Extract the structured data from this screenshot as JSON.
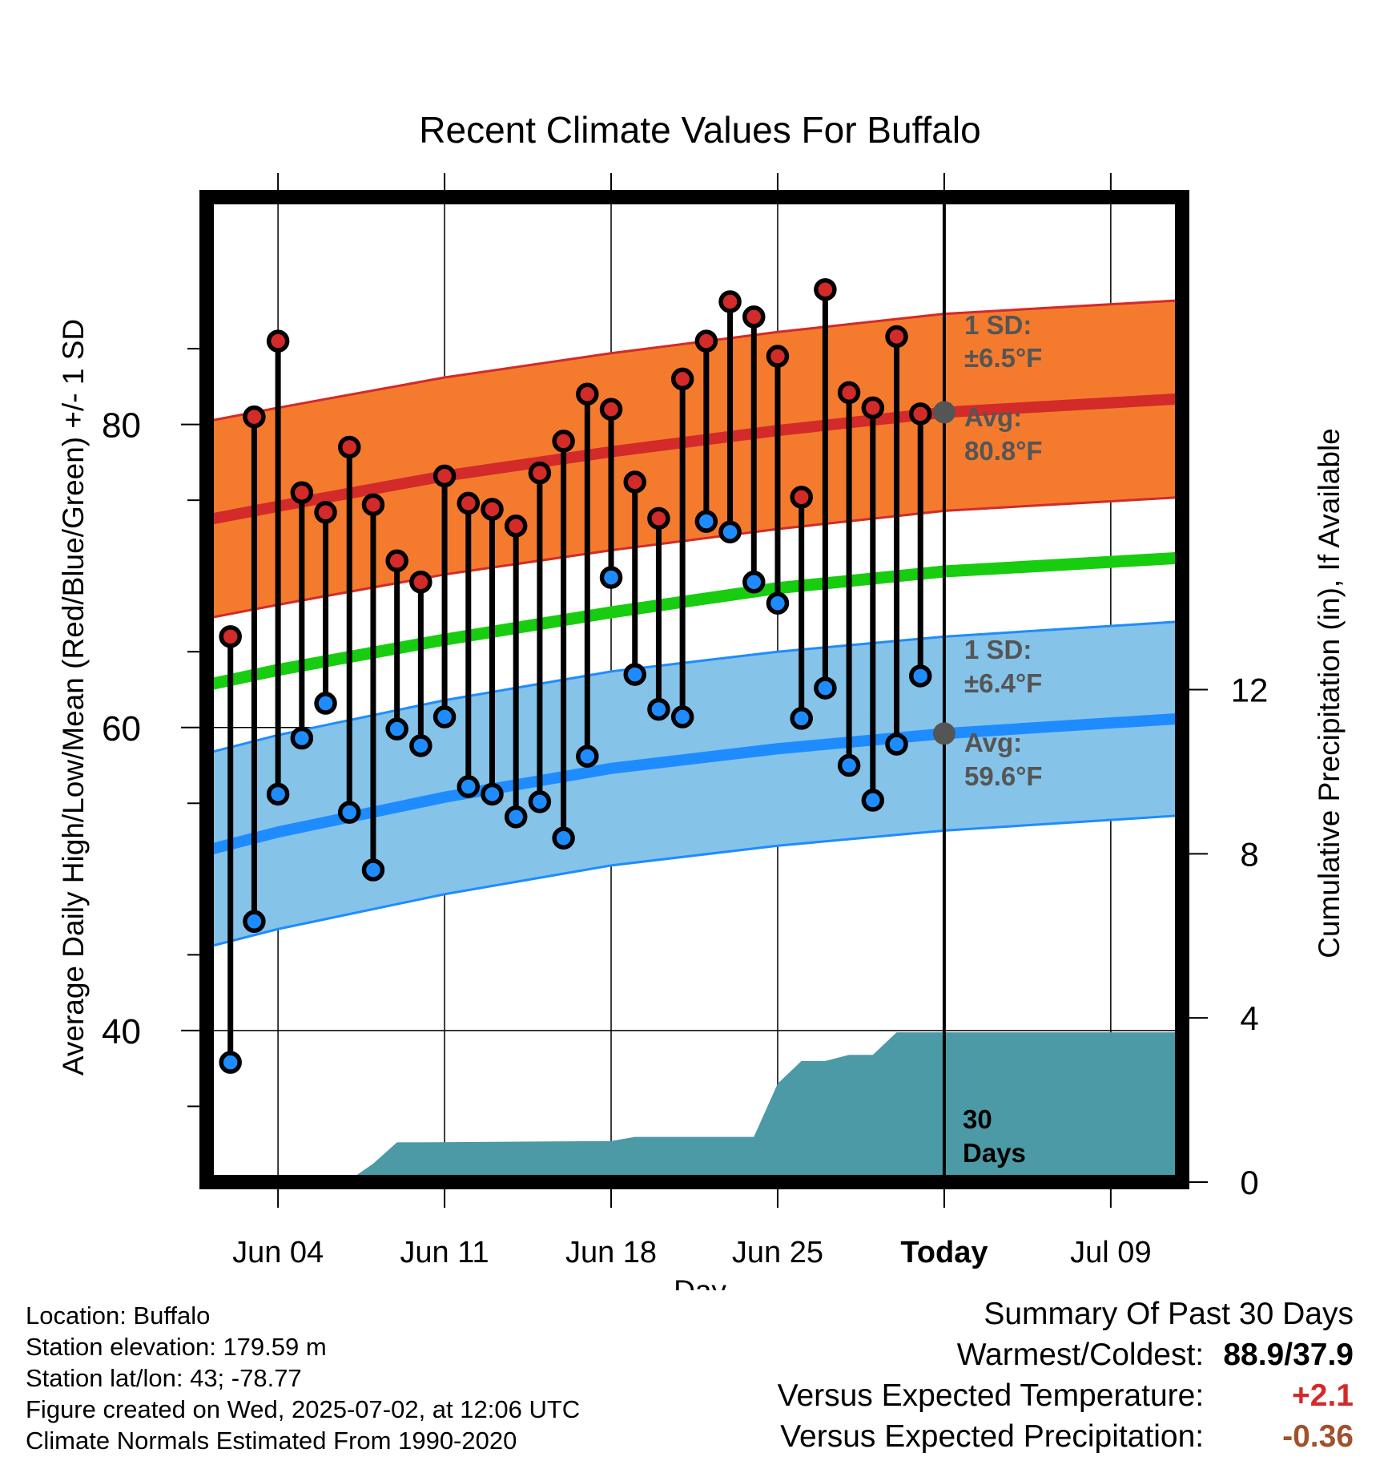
{
  "chart_data": {
    "type": "line",
    "title": "Recent Climate Values For Buffalo",
    "xlabel": "Day",
    "ylabel": "Average Daily High/Low/Mean (Red/Blue/Green) +/- 1 SD",
    "y2label": "Cumulative Precipitation (in), If Available",
    "x_range": [
      "2025-06-01",
      "2025-07-12"
    ],
    "ylim": [
      30,
      95
    ],
    "y2lim": [
      0,
      24
    ],
    "x_ticks": [
      {
        "date": "2025-06-04",
        "label": "Jun 04"
      },
      {
        "date": "2025-06-11",
        "label": "Jun 11"
      },
      {
        "date": "2025-06-18",
        "label": "Jun 18"
      },
      {
        "date": "2025-06-25",
        "label": "Jun 25"
      },
      {
        "date": "2025-07-02",
        "label": "Today"
      },
      {
        "date": "2025-07-09",
        "label": "Jul 09"
      }
    ],
    "y_ticks": [
      40,
      60,
      80
    ],
    "y2_ticks": [
      0,
      4,
      8,
      12
    ],
    "grid": true,
    "today": "2025-07-02",
    "days": [
      "2025-06-02",
      "2025-06-03",
      "2025-06-04",
      "2025-06-05",
      "2025-06-06",
      "2025-06-07",
      "2025-06-08",
      "2025-06-09",
      "2025-06-10",
      "2025-06-11",
      "2025-06-12",
      "2025-06-13",
      "2025-06-14",
      "2025-06-15",
      "2025-06-16",
      "2025-06-17",
      "2025-06-18",
      "2025-06-19",
      "2025-06-20",
      "2025-06-21",
      "2025-06-22",
      "2025-06-23",
      "2025-06-24",
      "2025-06-25",
      "2025-06-26",
      "2025-06-27",
      "2025-06-28",
      "2025-06-29",
      "2025-06-30",
      "2025-07-01"
    ],
    "highs": [
      66.0,
      80.5,
      85.5,
      75.5,
      74.2,
      78.5,
      74.7,
      71.0,
      69.6,
      76.6,
      74.8,
      74.4,
      73.3,
      76.8,
      78.9,
      82.0,
      81.0,
      76.2,
      73.8,
      83.0,
      85.5,
      88.1,
      87.1,
      84.5,
      75.2,
      88.9,
      82.1,
      81.1,
      85.8,
      80.7
    ],
    "lows": [
      37.9,
      47.2,
      55.6,
      59.3,
      61.6,
      54.4,
      50.6,
      59.9,
      58.8,
      60.7,
      56.1,
      55.6,
      54.1,
      55.1,
      52.7,
      58.1,
      69.9,
      63.5,
      61.2,
      60.7,
      73.6,
      72.9,
      69.6,
      68.2,
      60.6,
      62.6,
      57.5,
      55.2,
      58.9,
      63.4
    ],
    "normals": {
      "dates": [
        "2025-06-01",
        "2025-06-04",
        "2025-06-11",
        "2025-06-18",
        "2025-06-25",
        "2025-07-02",
        "2025-07-12"
      ],
      "avg_high": [
        73.7,
        74.6,
        76.6,
        78.2,
        79.6,
        80.8,
        81.7
      ],
      "avg_low": [
        51.9,
        53.1,
        55.4,
        57.3,
        58.6,
        59.6,
        60.6
      ],
      "avg_mean": [
        62.8,
        63.8,
        65.8,
        67.6,
        69.2,
        70.3,
        71.2
      ],
      "high_sd": 6.5,
      "low_sd": 6.4
    },
    "precip": {
      "dates": [
        "2025-06-01",
        "2025-06-07",
        "2025-06-08",
        "2025-06-09",
        "2025-06-10",
        "2025-06-18",
        "2025-06-19",
        "2025-06-24",
        "2025-06-25",
        "2025-06-26",
        "2025-06-27",
        "2025-06-28",
        "2025-06-29",
        "2025-06-30",
        "2025-07-12"
      ],
      "cumulative": [
        0.0,
        0.05,
        0.45,
        0.97,
        0.97,
        1.0,
        1.1,
        1.1,
        2.4,
        2.95,
        2.95,
        3.1,
        3.1,
        3.65,
        3.65
      ]
    },
    "annotations": {
      "high_sd_label": "1 SD:",
      "high_sd_value": "±6.5°F",
      "high_avg_label": "Avg:",
      "high_avg_value": "80.8°F",
      "low_sd_label": "1 SD:",
      "low_sd_value": "±6.4°F",
      "low_avg_label": "Avg:",
      "low_avg_value": "59.6°F",
      "days_label_1": "30",
      "days_label_2": "Days"
    },
    "colors": {
      "high_band": "#f47b2e",
      "high_line": "#d32a2a",
      "low_band": "#86c3e8",
      "low_line": "#1e8cff",
      "mean_line": "#18cc10",
      "precip": "#4b9aa6",
      "high_marker": "#d32a2a",
      "low_marker": "#1e8cff",
      "annotation_text": "#555555"
    }
  },
  "info": {
    "location": "Location: Buffalo",
    "elevation": "Station elevation: 179.59 m",
    "latlon": "Station lat/lon: 43; -78.77",
    "created": "Figure created on Wed, 2025-07-02, at 12:06 UTC",
    "normals": "Climate Normals Estimated From 1990-2020"
  },
  "summary": {
    "title": "Summary Of Past 30 Days",
    "warm_cold_label": "Warmest/Coldest:",
    "warm_cold_value": "88.9/37.9",
    "temp_label": "Versus Expected Temperature:",
    "temp_value": "+2.1",
    "temp_color": "#d32a2a",
    "precip_label": "Versus Expected Precipitation:",
    "precip_value": "-0.36",
    "precip_color": "#a0522d"
  }
}
